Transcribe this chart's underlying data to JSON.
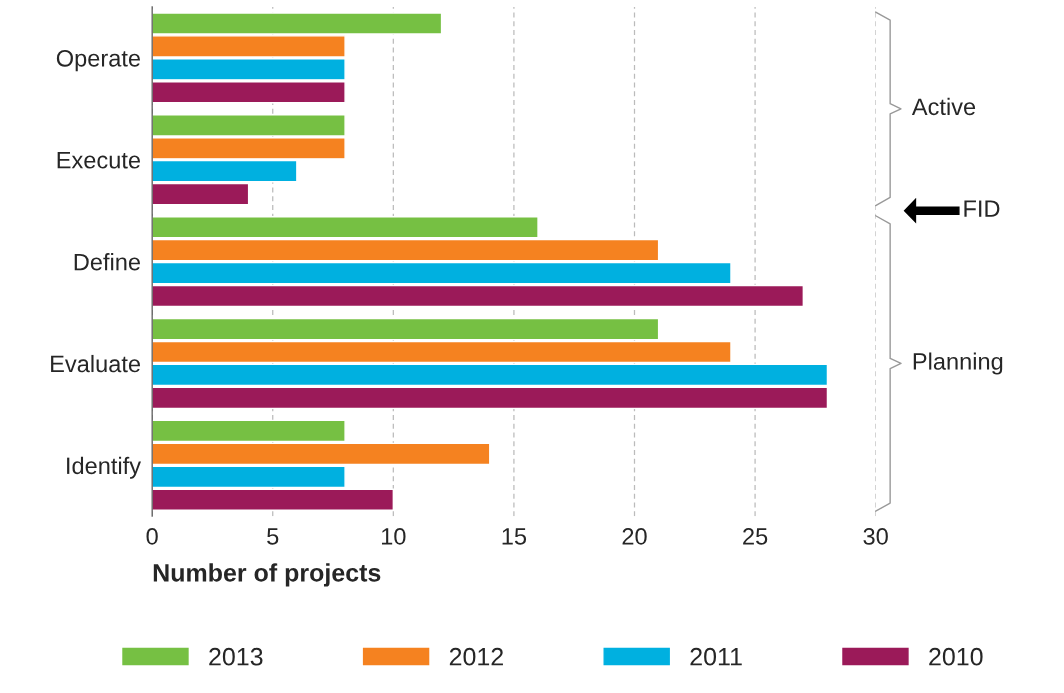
{
  "chart_data": {
    "type": "bar",
    "orientation": "horizontal",
    "xlabel": "Number of projects",
    "categories": [
      "Operate",
      "Execute",
      "Define",
      "Evaluate",
      "Identify"
    ],
    "series": [
      {
        "name": "2013",
        "color": "#76c043",
        "values": [
          12,
          8,
          16,
          21,
          8
        ]
      },
      {
        "name": "2012",
        "color": "#f58220",
        "values": [
          8,
          8,
          21,
          24,
          14
        ]
      },
      {
        "name": "2011",
        "color": "#00b0e0",
        "values": [
          8,
          6,
          24,
          28,
          8
        ]
      },
      {
        "name": "2010",
        "color": "#9b1a59",
        "values": [
          8,
          4,
          27,
          28,
          10
        ]
      }
    ],
    "xlim": [
      0,
      30
    ],
    "xticks": [
      0,
      5,
      10,
      15,
      20,
      25,
      30
    ],
    "grid": "x",
    "legend": "bottom",
    "annotations": [
      "Active",
      "FID",
      "Planning"
    ]
  }
}
